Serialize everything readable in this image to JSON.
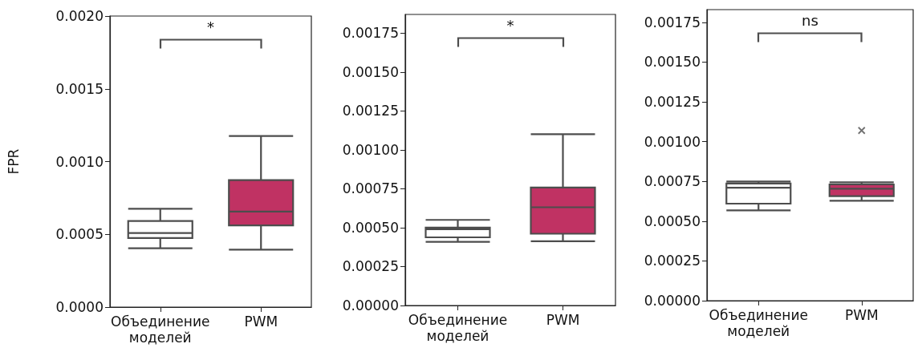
{
  "chart_data": [
    {
      "type": "box",
      "categories": [
        "Объединение моделей",
        "PWM"
      ],
      "ylabel": "FPR",
      "ylim": [
        0,
        0.002
      ],
      "yticks": [
        {
          "value": 0,
          "label": "0.0000"
        },
        {
          "value": 0.0005,
          "label": "0.0005"
        },
        {
          "value": 0.001,
          "label": "0.0010"
        },
        {
          "value": 0.0015,
          "label": "0.0015"
        },
        {
          "value": 0.002,
          "label": "0.0020"
        }
      ],
      "grid": false,
      "colors": [
        "#ffffff",
        "#c03263"
      ],
      "annotations": [
        "*"
      ],
      "boxes": [
        {
          "low": 0.000404,
          "q1": 0.000474,
          "median": 0.000509,
          "q3": 0.000592,
          "high": 0.000676
        },
        {
          "low": 0.000395,
          "q1": 0.000561,
          "median": 0.000656,
          "q3": 0.000873,
          "high": 0.001176
        }
      ]
    },
    {
      "type": "box",
      "categories": [
        "Объединение моделей",
        "PWM"
      ],
      "ylim": [
        0,
        0.00187
      ],
      "yticks": [
        {
          "value": 0,
          "label": "0.00000"
        },
        {
          "value": 0.00025,
          "label": "0.00025"
        },
        {
          "value": 0.0005,
          "label": "0.00050"
        },
        {
          "value": 0.00075,
          "label": "0.00075"
        },
        {
          "value": 0.001,
          "label": "0.00100"
        },
        {
          "value": 0.00125,
          "label": "0.00125"
        },
        {
          "value": 0.0015,
          "label": "0.00150"
        },
        {
          "value": 0.00175,
          "label": "0.00175"
        }
      ],
      "grid": false,
      "colors": [
        "#ffffff",
        "#c03263"
      ],
      "annotations": [
        "*"
      ],
      "boxes": [
        {
          "low": 0.000409,
          "q1": 0.000438,
          "median": 0.00049,
          "q3": 0.0005,
          "high": 0.00055
        },
        {
          "low": 0.000413,
          "q1": 0.000461,
          "median": 0.000631,
          "q3": 0.000758,
          "high": 0.0011
        }
      ]
    },
    {
      "type": "box",
      "categories": [
        "Объединение моделей",
        "PWM"
      ],
      "ylim": [
        0,
        0.00183
      ],
      "yticks": [
        {
          "value": 0,
          "label": "0.00000"
        },
        {
          "value": 0.00025,
          "label": "0.00025"
        },
        {
          "value": 0.0005,
          "label": "0.00050"
        },
        {
          "value": 0.00075,
          "label": "0.00075"
        },
        {
          "value": 0.001,
          "label": "0.00100"
        },
        {
          "value": 0.00125,
          "label": "0.00125"
        },
        {
          "value": 0.0015,
          "label": "0.00150"
        },
        {
          "value": 0.00175,
          "label": "0.00175"
        }
      ],
      "grid": false,
      "marker": "cross",
      "colors": [
        "#ffffff",
        "#c03263"
      ],
      "annotations": [
        "ns"
      ],
      "boxes": [
        {
          "low": 0.000568,
          "q1": 0.00061,
          "median": 0.00071,
          "q3": 0.000737,
          "high": 0.000749
        },
        {
          "low": 0.000628,
          "q1": 0.000657,
          "median": 0.000704,
          "q3": 0.000731,
          "high": 0.000744,
          "outliers": [
            0.00107
          ]
        }
      ]
    }
  ]
}
